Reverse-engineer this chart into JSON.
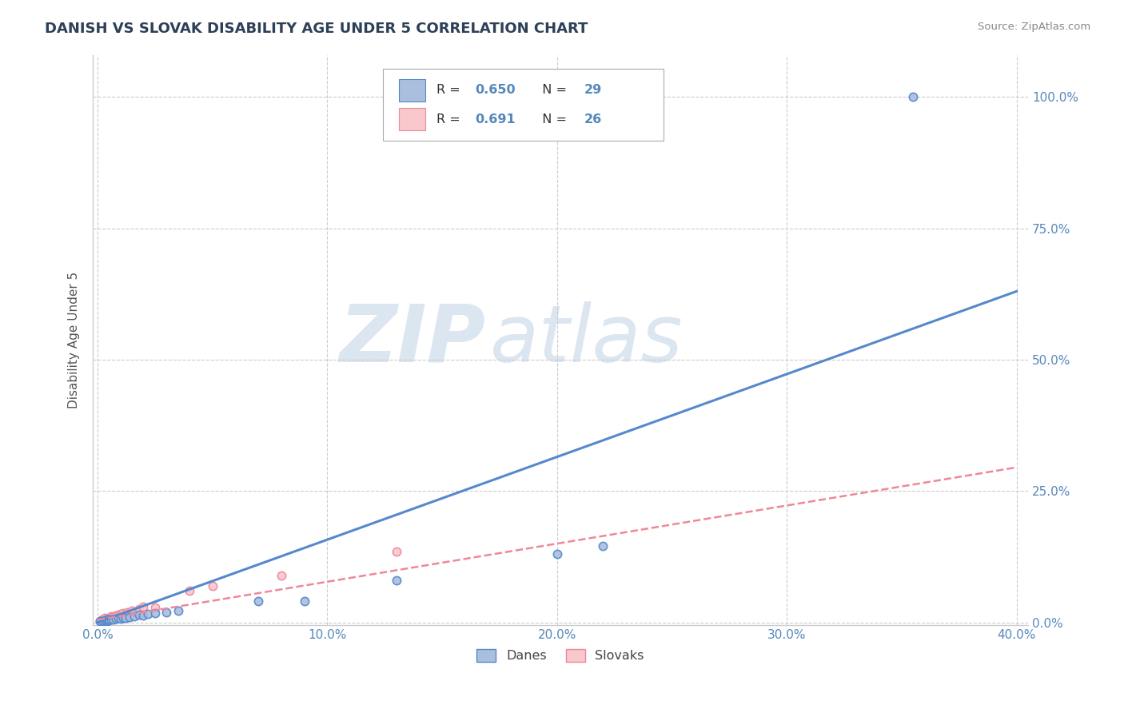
{
  "title": "DANISH VS SLOVAK DISABILITY AGE UNDER 5 CORRELATION CHART",
  "source": "Source: ZipAtlas.com",
  "ylabel_label": "Disability Age Under 5",
  "xlim": [
    -0.002,
    0.405
  ],
  "ylim": [
    -0.005,
    1.08
  ],
  "xticks": [
    0.0,
    0.1,
    0.2,
    0.3,
    0.4
  ],
  "xticklabels": [
    "0.0%",
    "10.0%",
    "20.0%",
    "30.0%",
    "40.0%"
  ],
  "yticks": [
    0.0,
    0.25,
    0.5,
    0.75,
    1.0
  ],
  "yticklabels": [
    "0.0%",
    "25.0%",
    "50.0%",
    "75.0%",
    "100.0%"
  ],
  "background_color": "#ffffff",
  "grid_color": "#cccccc",
  "title_color": "#2E4057",
  "tick_color": "#5588bb",
  "watermark_ZIP": "ZIP",
  "watermark_atlas": "atlas",
  "watermark_color": "#dce6f0",
  "blue_color": "#5588cc",
  "blue_fill": "#aabedd",
  "pink_color": "#ee8899",
  "pink_fill": "#f8c8cc",
  "legend_r_blue": "0.650",
  "legend_n_blue": "29",
  "legend_r_pink": "0.691",
  "legend_n_pink": "26",
  "legend_label_blue": "Danes",
  "legend_label_pink": "Slovaks",
  "blue_x": [
    0.001,
    0.002,
    0.003,
    0.003,
    0.004,
    0.004,
    0.005,
    0.005,
    0.006,
    0.007,
    0.008,
    0.009,
    0.01,
    0.011,
    0.012,
    0.014,
    0.016,
    0.018,
    0.02,
    0.022,
    0.025,
    0.03,
    0.035,
    0.07,
    0.09,
    0.13,
    0.2,
    0.22,
    0.355
  ],
  "blue_y": [
    0.002,
    0.003,
    0.002,
    0.004,
    0.003,
    0.005,
    0.004,
    0.006,
    0.005,
    0.006,
    0.007,
    0.008,
    0.007,
    0.009,
    0.008,
    0.01,
    0.012,
    0.015,
    0.013,
    0.016,
    0.018,
    0.02,
    0.022,
    0.04,
    0.04,
    0.08,
    0.13,
    0.145,
    1.0
  ],
  "pink_x": [
    0.001,
    0.002,
    0.002,
    0.003,
    0.003,
    0.004,
    0.005,
    0.006,
    0.006,
    0.007,
    0.008,
    0.009,
    0.01,
    0.011,
    0.012,
    0.013,
    0.014,
    0.015,
    0.016,
    0.018,
    0.02,
    0.025,
    0.04,
    0.05,
    0.08,
    0.13
  ],
  "pink_y": [
    0.003,
    0.004,
    0.006,
    0.005,
    0.008,
    0.007,
    0.009,
    0.01,
    0.012,
    0.011,
    0.013,
    0.015,
    0.016,
    0.018,
    0.015,
    0.02,
    0.018,
    0.022,
    0.02,
    0.025,
    0.03,
    0.028,
    0.06,
    0.07,
    0.09,
    0.135
  ],
  "blue_line_x": [
    0.0,
    0.4
  ],
  "blue_line_y": [
    0.0,
    0.63
  ],
  "pink_line_x": [
    0.0,
    0.4
  ],
  "pink_line_y": [
    0.005,
    0.295
  ]
}
